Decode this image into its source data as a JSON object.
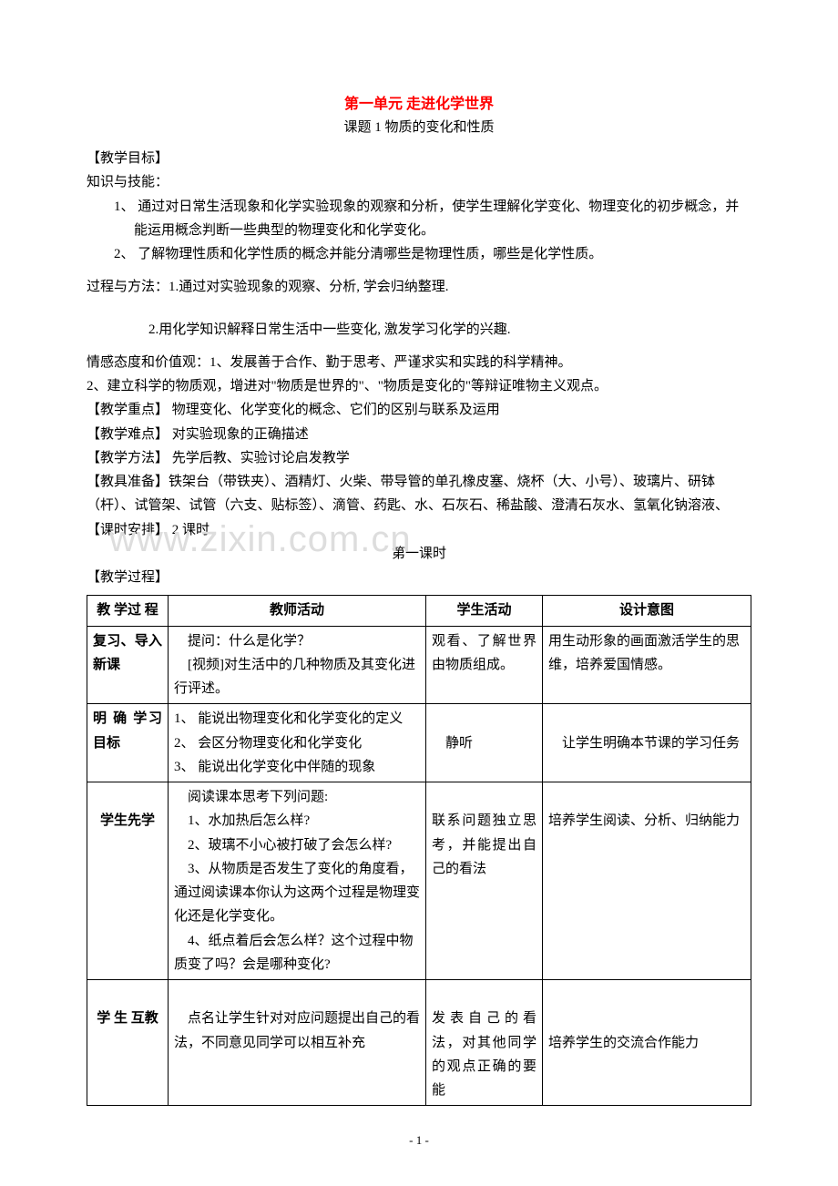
{
  "title": "第一单元   走进化学世界",
  "subtitle": "课题 1  物质的变化和性质",
  "sections": {
    "goal_head": "【教学目标】",
    "knowledge_head": "知识与技能：",
    "knowledge_items": [
      "1、 通过对日常生活现象和化学实验现象的观察和分析，使学生理解化学变化、物理变化的初步概念，并能运用概念判断一些典型的物理变化和化学变化。",
      "2、 了解物理性质和化学性质的概念并能分清哪些是物理性质，哪些是化学性质。"
    ],
    "process_head": "过程与方法：",
    "process_items": [
      "1.通过对实验现象的观察、分析, 学会归纳整理.",
      "2.用化学知识解释日常生活中一些变化, 激发学习化学的兴趣."
    ],
    "emotion_head": "情感态度和价值观：",
    "emotion_items": [
      "1、发展善于合作、勤于思考、严谨求实和实践的科学精神。",
      "2、建立科学的物质观，增进对\"物质是世界的\"、\"物质是变化的\"等辩证唯物主义观点。"
    ],
    "keypoint": "【教学重点】       物理变化、化学变化的概念、它们的区别与联系及运用",
    "difficulty": "【教学难点】    对实验现象的正确描述",
    "method": "【教学方法】       先学后教、实验讨论启发教学",
    "prep": "【教具准备】铁架台（带铁夹）、酒精灯、火柴、带导管的单孔橡皮塞、烧杯（大、小号）、玻璃片、研钵（杆）、试管架、试管（六支、贴标签）、滴管、药匙、水、石灰石、稀盐酸、澄清石灰水、氢氧化钠溶液、",
    "time": "【课时安排】   2 课时",
    "lesson1": "第一课时",
    "process": "【教学过程】"
  },
  "table": {
    "headers": [
      "教 学过 程",
      "教师活动",
      "学生活动",
      "设计意图"
    ],
    "rows": [
      {
        "c1": "复习、导入新课",
        "c2": "    提问：什么是化学？\n    [视频]对生活中的几种物质及其变化进行评述。",
        "c3": "    观看、了解世界由物质组成。",
        "c4": "    用生动形象的画面激活学生的思维，培养爱国情感。"
      },
      {
        "c1": "明 确 学习目标",
        "c2": "1、 能说出物理变化和化学变化的定义\n2、 会区分物理变化和化学变化\n3、 能说出化学变化中伴随的现象",
        "c3": "\n    静听",
        "c4": "\n    让学生明确本节课的学习任务"
      },
      {
        "c1": "\n学生先学",
        "c2": "    阅读课本思考下列问题:\n    1、水加热后怎么样?\n    2、玻璃不小心被打破了会怎么样?\n    3、从物质是否发生了变化的角度看，通过阅读课本你认为这两个过程是物理变化还是化学变化。\n    4、纸点着后会怎么样？这个过程中物质变了吗？会是哪种变化?",
        "c3": "\n联系问题独立思考，并能提出自己的看法",
        "c4": "\n培养学生阅读、分析、归纳能力"
      },
      {
        "c1": "\n学 生 互教",
        "c2": "\n    点名让学生针对对应问题提出自己的看法，不同意见同学可以相互补充",
        "c3": "\n发表自己的看法，对其他同学的观点正确的要能",
        "c4": "\n\n培养学生的交流合作能力"
      }
    ]
  },
  "watermark": "www.zixin.com.cn",
  "page_number": "- 1 -",
  "colors": {
    "title": "#ff0000",
    "text": "#000000",
    "watermark": "#dddddd",
    "border": "#000000",
    "background": "#ffffff"
  }
}
